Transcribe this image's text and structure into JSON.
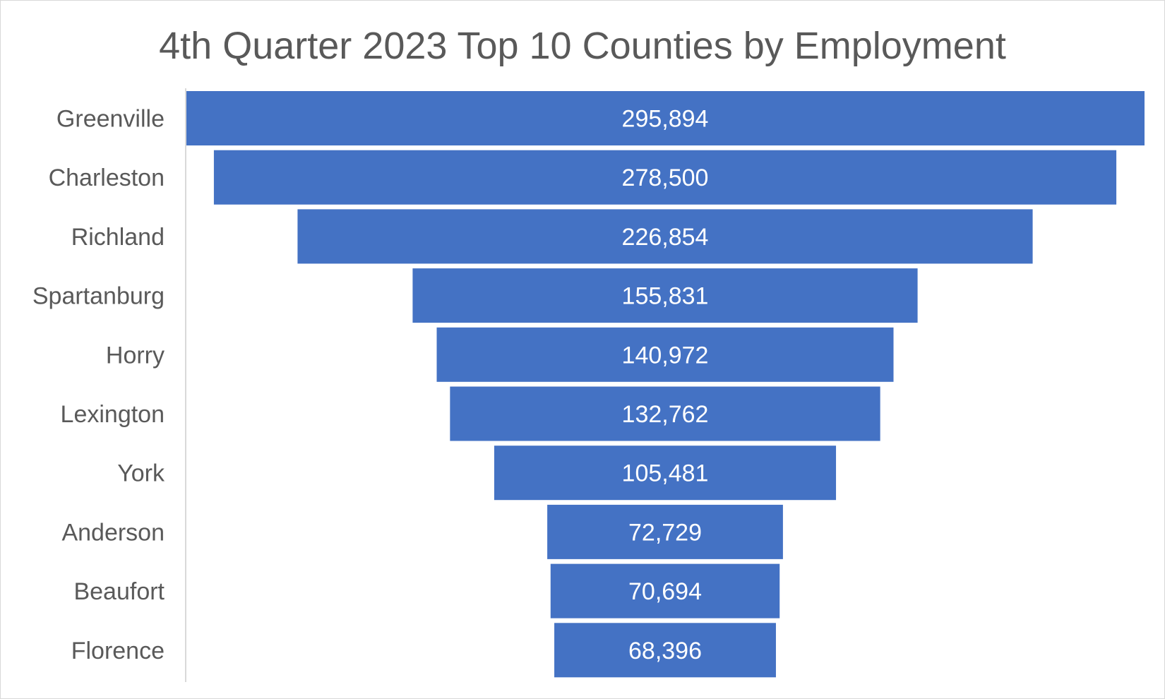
{
  "chart_data": {
    "type": "bar",
    "orientation": "horizontal-funnel",
    "title": "4th Quarter 2023 Top 10 Counties by Employment",
    "categories": [
      "Greenville",
      "Charleston",
      "Richland",
      "Spartanburg",
      "Horry",
      "Lexington",
      "York",
      "Anderson",
      "Beaufort",
      "Florence"
    ],
    "values": [
      295894,
      278500,
      226854,
      155831,
      140972,
      132762,
      105481,
      72729,
      70694,
      68396
    ],
    "value_labels": [
      "295,894",
      "278,500",
      "226,854",
      "155,831",
      "140,972",
      "132,762",
      "105,481",
      "72,729",
      "70,694",
      "68,396"
    ],
    "xlabel": "",
    "ylabel": "",
    "xlim": [
      0,
      295894
    ],
    "grid": false,
    "legend": "none",
    "colors": {
      "bar": "#4472C4",
      "text": "#595959",
      "axis": "#d9d9d9",
      "bar_label": "#ffffff"
    }
  }
}
